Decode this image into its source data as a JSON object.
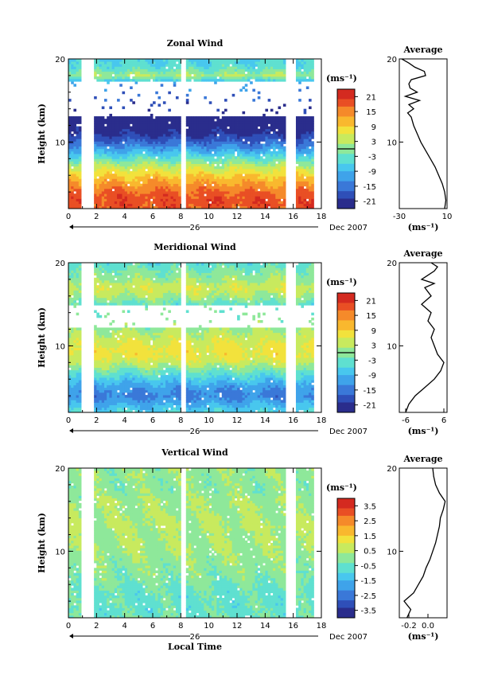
{
  "figure": {
    "footer_label": "Local Time",
    "day_label": "26",
    "month_label": "Dec 2007",
    "height_label": "Height (km)",
    "average_title": "Average",
    "unit_label": "(ms⁻¹)"
  },
  "colormap": [
    "#2a2d8c",
    "#2f4fb8",
    "#3a78d8",
    "#3fa3ea",
    "#48c7ee",
    "#5fe0d0",
    "#8ee89a",
    "#c8ea5e",
    "#f2e23c",
    "#f9b82e",
    "#f58a2a",
    "#e94f24",
    "#d42a20"
  ],
  "chart_data": [
    {
      "type": "heatmap",
      "title": "Zonal Wind",
      "xlabel": "",
      "ylabel": "Height (km)",
      "xlim": [
        0,
        18
      ],
      "ylim": [
        2,
        20
      ],
      "x_ticks": [
        "0",
        "2",
        "4",
        "6",
        "8",
        "10",
        "12",
        "14",
        "16",
        "18"
      ],
      "y_ticks": [
        "10",
        "20"
      ],
      "colorbar": {
        "unit": "(ms⁻¹)",
        "range": [
          -24,
          24
        ],
        "ticks": [
          "21",
          "15",
          "9",
          "3",
          "-3",
          "-9",
          "-15",
          "-21"
        ],
        "zero_line": 0
      },
      "gaps_hours": [
        [
          1.0,
          1.8
        ],
        [
          8.0,
          8.3
        ],
        [
          15.4,
          16.2
        ]
      ],
      "no_data_band_km": [
        13.0,
        17.2
      ],
      "profile_by_height": [
        [
          2,
          18
        ],
        [
          3,
          19
        ],
        [
          4,
          17
        ],
        [
          5,
          13
        ],
        [
          6,
          9
        ],
        [
          7,
          4
        ],
        [
          8,
          -3
        ],
        [
          9,
          -10
        ],
        [
          10,
          -16
        ],
        [
          11,
          -21
        ],
        [
          12,
          -24
        ],
        [
          13,
          -24
        ],
        [
          17,
          -12
        ],
        [
          18,
          2
        ],
        [
          19,
          -4
        ],
        [
          20,
          -6
        ]
      ],
      "average": {
        "x_ticks": [
          "-30",
          "10"
        ],
        "xlim": [
          -30,
          10
        ],
        "xlabel": "(ms⁻¹)",
        "heights": [
          2,
          3,
          4,
          5,
          6,
          7,
          8,
          9,
          10,
          11,
          12,
          13,
          13.5,
          14,
          14.5,
          15,
          15.5,
          16,
          16.5,
          17,
          17.5,
          18,
          18.5,
          19,
          19.5,
          20
        ],
        "values": [
          8,
          9,
          8,
          6,
          3,
          0,
          -4,
          -8,
          -12,
          -15,
          -18,
          -20,
          -23,
          -18,
          -22,
          -13,
          -25,
          -15,
          -21,
          -22,
          -20,
          -8,
          -9,
          -17,
          -22,
          -28
        ]
      }
    },
    {
      "type": "heatmap",
      "title": "Meridional Wind",
      "xlabel": "",
      "ylabel": "Height (km)",
      "xlim": [
        0,
        18
      ],
      "ylim": [
        2,
        20
      ],
      "x_ticks": [
        "0",
        "2",
        "4",
        "6",
        "8",
        "10",
        "12",
        "14",
        "16",
        "18"
      ],
      "y_ticks": [
        "10",
        "20"
      ],
      "colorbar": {
        "unit": "(ms⁻¹)",
        "range": [
          -24,
          24
        ],
        "ticks": [
          "21",
          "15",
          "9",
          "3",
          "-3",
          "-9",
          "-15",
          "-21"
        ],
        "zero_line": 0
      },
      "gaps_hours": [
        [
          1.0,
          1.8
        ],
        [
          8.0,
          8.3
        ],
        [
          15.4,
          16.2
        ]
      ],
      "no_data_band_km": [
        12.3,
        15.0
      ],
      "profile_by_height": [
        [
          2,
          -5
        ],
        [
          3,
          -10
        ],
        [
          4,
          -14
        ],
        [
          5,
          -12
        ],
        [
          6,
          -7
        ],
        [
          7,
          -2
        ],
        [
          8,
          4
        ],
        [
          9,
          7
        ],
        [
          10,
          6
        ],
        [
          11,
          4
        ],
        [
          12,
          1
        ],
        [
          15,
          -3
        ],
        [
          16,
          2
        ],
        [
          17,
          5
        ],
        [
          18,
          1
        ],
        [
          19,
          -1
        ],
        [
          20,
          -4
        ]
      ],
      "average": {
        "x_ticks": [
          "-6",
          "6"
        ],
        "xlim": [
          -8,
          7
        ],
        "xlabel": "(ms⁻¹)",
        "heights": [
          2,
          3,
          4,
          5,
          6,
          7,
          8,
          9,
          10,
          11,
          12,
          13,
          14,
          15,
          16,
          17,
          17.5,
          18,
          18.5,
          19,
          19.5,
          20
        ],
        "values": [
          -6,
          -5,
          -3,
          0,
          3,
          5,
          6,
          4,
          3,
          2,
          3,
          1,
          2,
          -1,
          2,
          0,
          3,
          -1,
          1,
          3,
          4,
          2
        ]
      }
    },
    {
      "type": "heatmap",
      "title": "Vertical Wind",
      "xlabel": "Local Time",
      "ylabel": "Height (km)",
      "xlim": [
        0,
        18
      ],
      "ylim": [
        2,
        20
      ],
      "x_ticks": [
        "0",
        "2",
        "4",
        "6",
        "8",
        "10",
        "12",
        "14",
        "16",
        "18"
      ],
      "y_ticks": [
        "10",
        "20"
      ],
      "colorbar": {
        "unit": "(ms⁻¹)",
        "range": [
          -4,
          4
        ],
        "ticks": [
          "3.5",
          "2.5",
          "1.5",
          "0.5",
          "-0.5",
          "-1.5",
          "-2.5",
          "-3.5"
        ],
        "zero_line": null
      },
      "gaps_hours": [
        [
          1.0,
          1.8
        ],
        [
          8.0,
          8.3
        ],
        [
          15.4,
          16.2
        ]
      ],
      "no_data_band_km": null,
      "profile_by_height": [
        [
          2,
          -0.4
        ],
        [
          3,
          -0.5
        ],
        [
          4,
          -0.5
        ],
        [
          5,
          -0.5
        ],
        [
          6,
          -0.3
        ],
        [
          7,
          -0.1
        ],
        [
          8,
          0.0
        ],
        [
          9,
          0.1
        ],
        [
          10,
          0.2
        ],
        [
          11,
          0.3
        ],
        [
          12,
          0.2
        ],
        [
          13,
          0.4
        ],
        [
          14,
          0.3
        ],
        [
          15,
          0.2
        ],
        [
          16,
          0.3
        ],
        [
          17,
          0.1
        ],
        [
          18,
          0.0
        ],
        [
          19,
          0.1
        ],
        [
          20,
          0.1
        ]
      ],
      "average": {
        "x_ticks": [
          "-0.2",
          "0.0"
        ],
        "xlim": [
          -0.3,
          0.2
        ],
        "xlabel": "(ms⁻¹)",
        "heights": [
          2,
          3,
          4,
          5,
          6,
          7,
          8,
          9,
          10,
          11,
          12,
          13,
          14,
          15,
          16,
          17,
          18,
          19,
          20
        ],
        "values": [
          -0.22,
          -0.18,
          -0.25,
          -0.15,
          -0.1,
          -0.05,
          -0.02,
          0.02,
          0.05,
          0.08,
          0.1,
          0.12,
          0.13,
          0.16,
          0.18,
          0.12,
          0.08,
          0.06,
          0.05
        ]
      }
    }
  ]
}
